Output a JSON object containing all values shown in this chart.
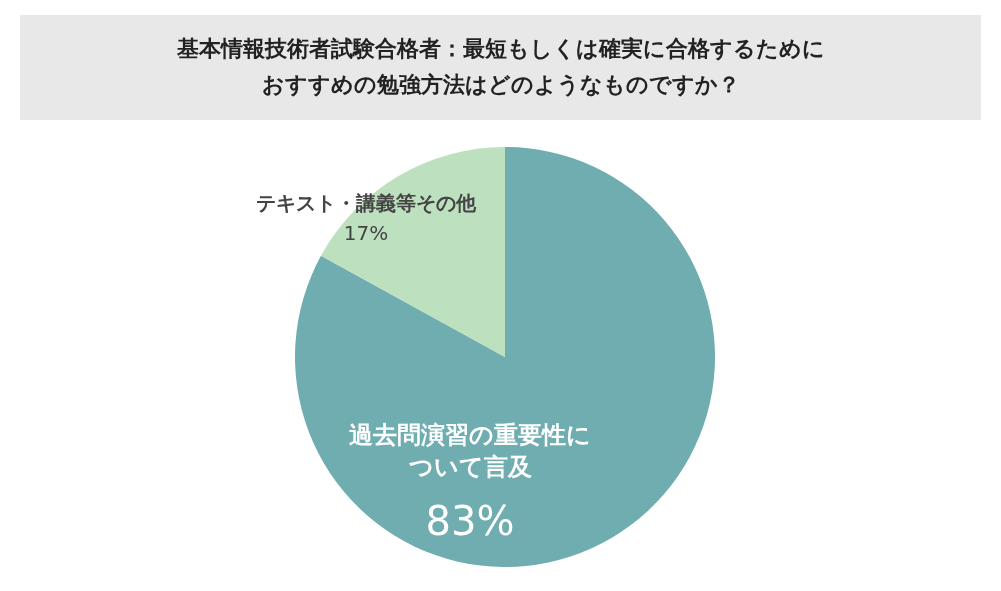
{
  "chart_data": {
    "type": "pie",
    "title": "基本情報技術者試験合格者：最短もしくは確実に合格するためにおすすめの勉強方法はどのようなものですか？",
    "categories": [
      "過去問演習の重要性について言及",
      "テキスト・講義等その他"
    ],
    "values": [
      83,
      17
    ],
    "colors": [
      "#70adb0",
      "#bde0bf"
    ],
    "value_labels": [
      "83%",
      "17%"
    ]
  }
}
